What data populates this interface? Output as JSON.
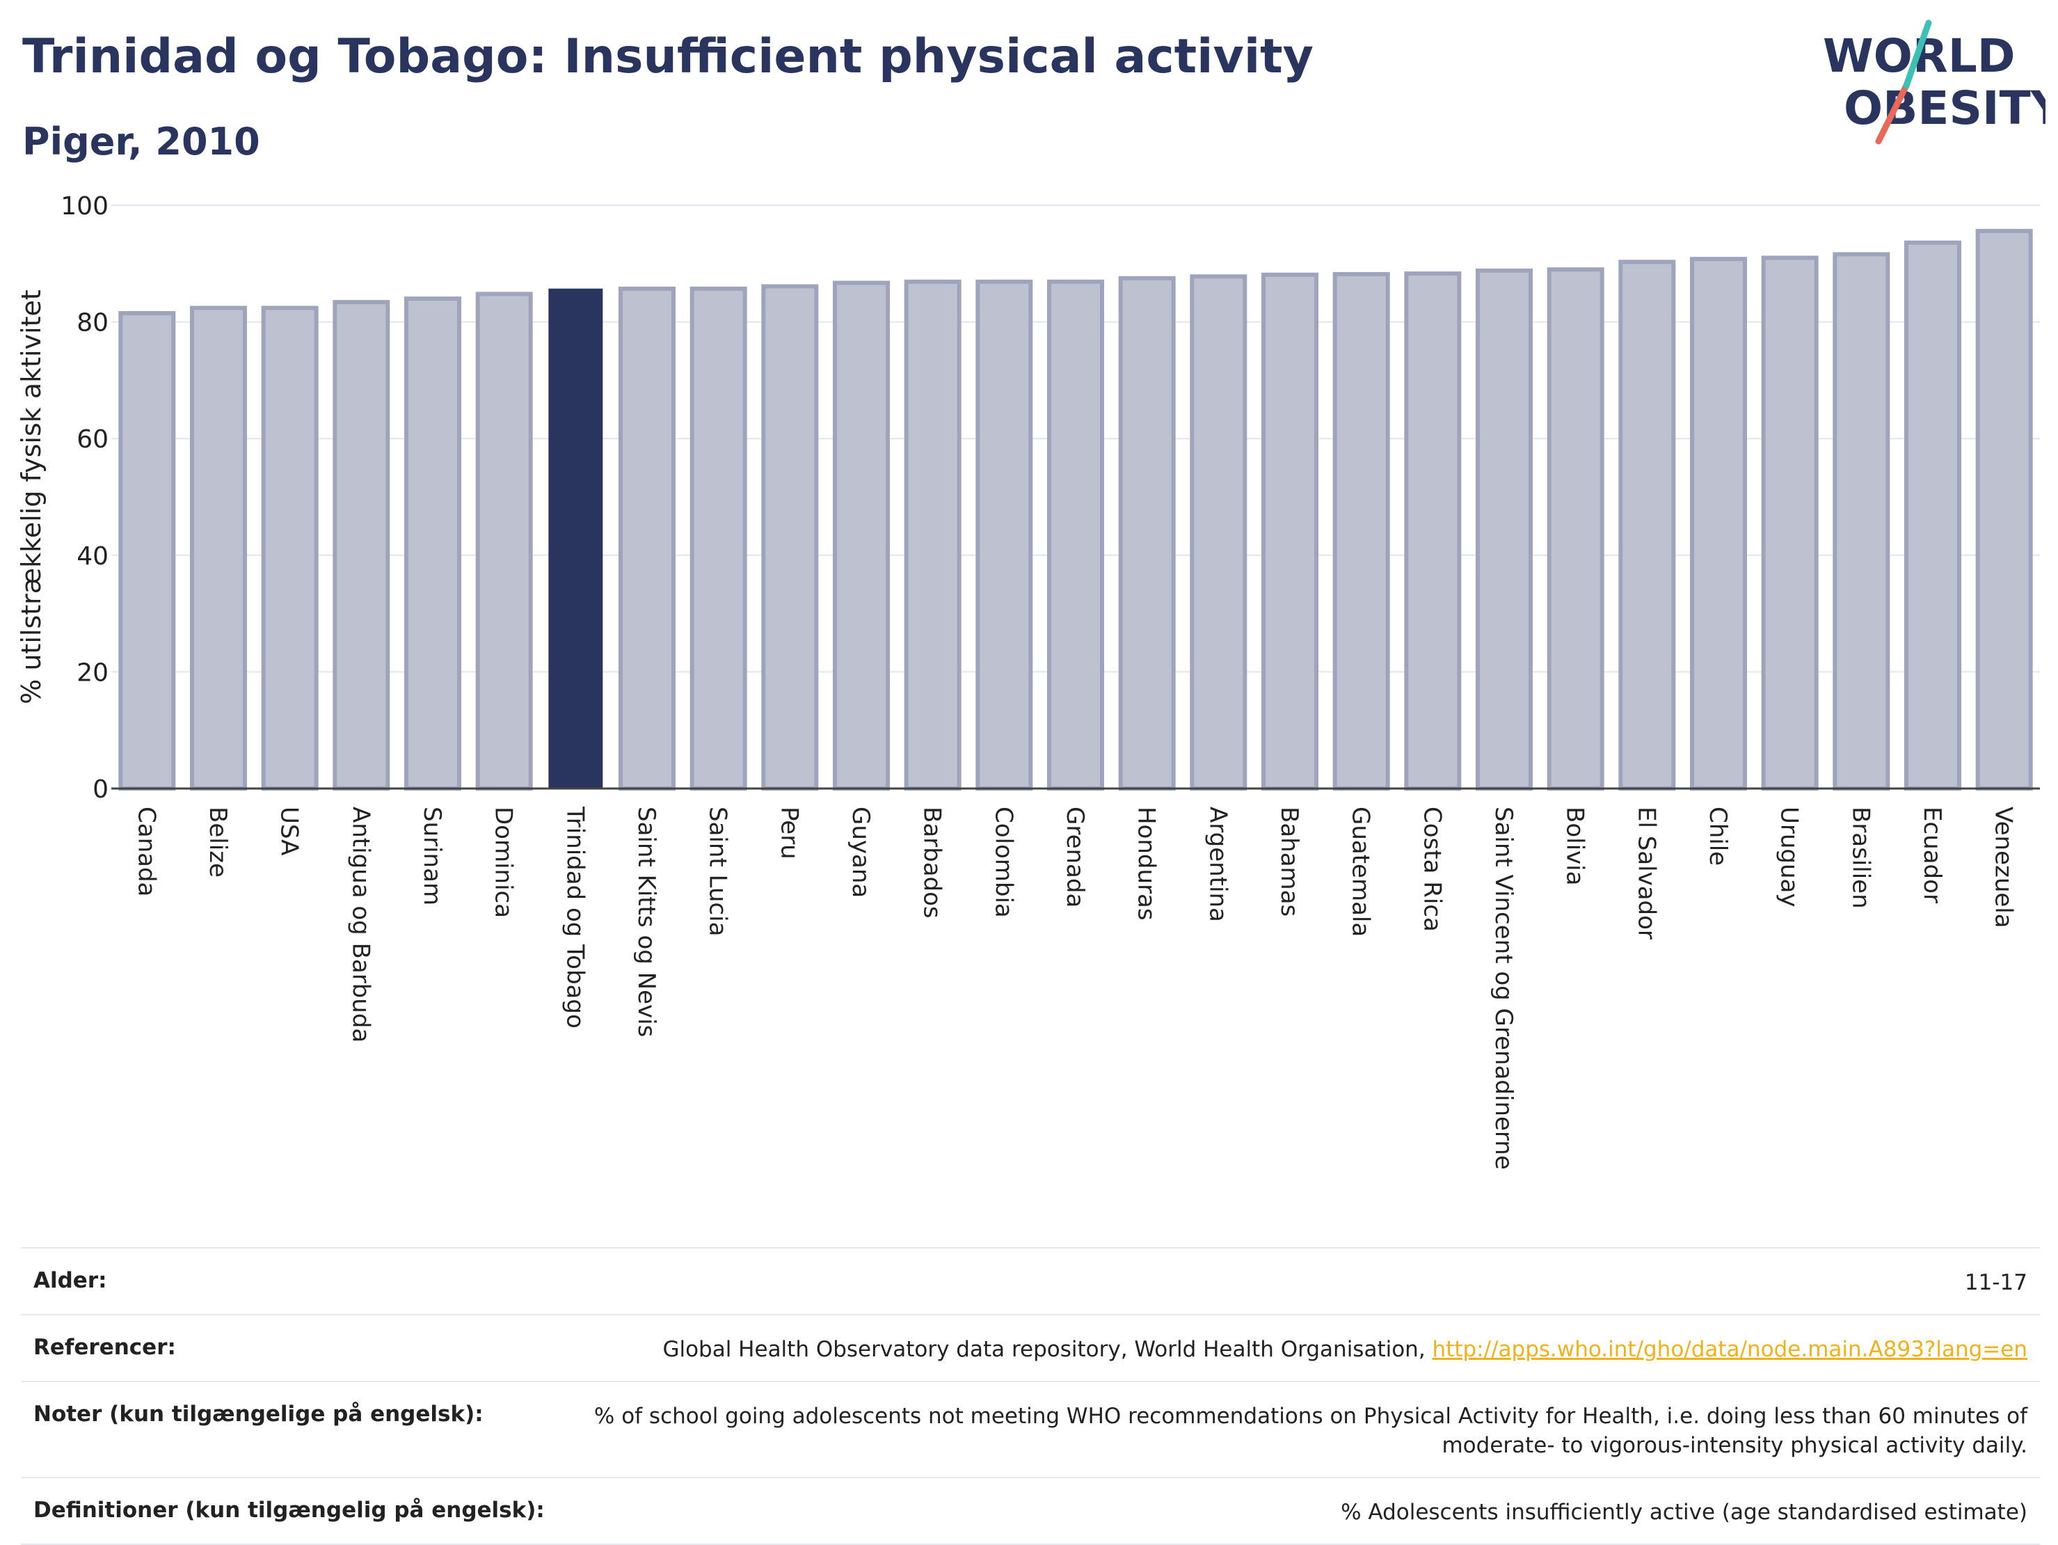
{
  "header": {
    "title": "Trinidad og Tobago: Insufficient physical activity",
    "subtitle": "Piger, 2010"
  },
  "logo": {
    "line1": "WORLD",
    "line2": "OBESITY"
  },
  "colors": {
    "highlight": "#2a355f",
    "bar": "#bec1d0",
    "bar_border": "#9ea4bb",
    "accent_link": "#f0b21a"
  },
  "chart_data": {
    "type": "bar",
    "title": "Trinidad og Tobago: Insufficient physical activity",
    "subtitle": "Piger, 2010",
    "ylabel": "% utilstrækkelig fysisk aktivitet",
    "xlabel": "",
    "ylim": [
      0,
      100
    ],
    "yticks": [
      0,
      20,
      40,
      60,
      80,
      100
    ],
    "grid": true,
    "highlight": "Trinidad og Tobago",
    "categories": [
      "Canada",
      "Belize",
      "USA",
      "Antigua og Barbuda",
      "Surinam",
      "Dominica",
      "Trinidad og Tobago",
      "Saint Kitts og Nevis",
      "Saint Lucia",
      "Peru",
      "Guyana",
      "Barbados",
      "Colombia",
      "Grenada",
      "Honduras",
      "Argentina",
      "Bahamas",
      "Guatemala",
      "Costa Rica",
      "Saint Vincent og Grenadinerne",
      "Bolivia",
      "El Salvador",
      "Chile",
      "Uruguay",
      "Brasilien",
      "Ecuador",
      "Venezuela"
    ],
    "values": [
      81.5,
      82.4,
      82.4,
      83.4,
      84.0,
      84.8,
      85.6,
      85.7,
      85.7,
      86.1,
      86.7,
      86.9,
      86.9,
      86.9,
      87.5,
      87.8,
      88.1,
      88.2,
      88.3,
      88.8,
      89.0,
      90.3,
      90.8,
      91.0,
      91.6,
      93.6,
      95.6
    ]
  },
  "info": {
    "rows": [
      {
        "label": "Alder:",
        "value": "11-17"
      },
      {
        "label": "Referencer:",
        "value": "Global Health Observatory data repository, World Health Organisation, ",
        "link": "http://apps.who.int/gho/data/node.main.A893?lang=en"
      },
      {
        "label": "Noter (kun tilgængelige på engelsk):",
        "value": "% of school going adolescents not meeting WHO recommendations on Physical Activity for Health, i.e. doing less than 60 minutes of moderate- to vigorous-intensity physical activity daily."
      },
      {
        "label": "Definitioner (kun tilgængelig på engelsk):",
        "value": "% Adolescents insufficiently active (age standardised estimate)"
      }
    ]
  }
}
